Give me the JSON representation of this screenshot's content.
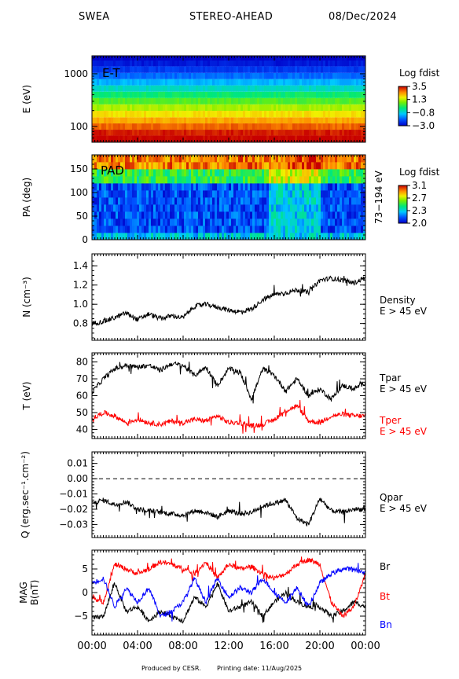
{
  "header": {
    "instrument": "SWEA",
    "spacecraft": "STEREO-AHEAD",
    "date": "08/Dec/2024"
  },
  "footer": {
    "producer": "Produced by CESR.",
    "print_date": "Printing date: 11/Aug/2025"
  },
  "colors": {
    "black": "#000000",
    "red": "#ff0000",
    "blue": "#0000ff"
  },
  "time_axis": {
    "tick_labels": [
      "00:00",
      "04:00",
      "08:00",
      "12:00",
      "16:00",
      "20:00",
      "00:00"
    ],
    "range_hours": [
      0,
      24
    ]
  },
  "chart_data": [
    {
      "id": "energy",
      "type": "heatmap",
      "panel_label": "E-T",
      "ylabel": "E (eV)",
      "yscale": "log",
      "ylim": [
        50,
        2200
      ],
      "yticks": [
        {
          "v": 100,
          "label": "100"
        },
        {
          "v": 1000,
          "label": "1000"
        }
      ],
      "colorbar": {
        "title": "Log fdist",
        "ticks": [
          "3.5",
          "1.3",
          "−0.8",
          "−3.0"
        ],
        "range": [
          -3.0,
          3.5
        ]
      },
      "energies_eV": [
        60,
        75,
        100,
        130,
        170,
        230,
        300,
        400,
        520,
        700,
        900,
        1200,
        1600,
        2000
      ],
      "log_fdist": [
        3.5,
        3.3,
        2.8,
        2.3,
        1.8,
        1.2,
        0.6,
        0.0,
        -0.6,
        -1.2,
        -1.8,
        -2.3,
        -2.7,
        -3.0
      ]
    },
    {
      "id": "pad",
      "type": "heatmap",
      "panel_label": "PAD",
      "ylabel": "PA (deg)",
      "ylim": [
        0,
        180
      ],
      "yticks": [
        {
          "v": 0,
          "label": "0"
        },
        {
          "v": 50,
          "label": "50"
        },
        {
          "v": 100,
          "label": "100"
        },
        {
          "v": 150,
          "label": "150"
        }
      ],
      "right_label": "73−194 eV",
      "colorbar": {
        "title": "Log fdist",
        "ticks": [
          "3.1",
          "2.7",
          "2.3",
          "2.0"
        ],
        "range": [
          2.0,
          3.1
        ]
      }
    },
    {
      "id": "density",
      "type": "line",
      "ylabel": "N (cm⁻³)",
      "ylim": [
        0.65,
        1.5
      ],
      "yticks": [
        {
          "v": 0.8,
          "label": "0.8"
        },
        {
          "v": 1.0,
          "label": "1.0"
        },
        {
          "v": 1.2,
          "label": "1.2"
        },
        {
          "v": 1.4,
          "label": "1.4"
        }
      ],
      "series": [
        {
          "name": "Density",
          "subtitle": "E > 45 eV",
          "color": "#000000",
          "x": [
            0,
            1,
            2,
            3,
            4,
            5,
            6,
            7,
            8,
            9,
            10,
            11,
            12,
            13,
            14,
            15,
            16,
            17,
            18,
            19,
            20,
            21,
            22,
            23,
            24
          ],
          "y": [
            0.8,
            0.82,
            0.86,
            0.91,
            0.84,
            0.9,
            0.85,
            0.88,
            0.86,
            0.98,
            1.0,
            0.97,
            0.94,
            0.92,
            0.95,
            1.05,
            1.1,
            1.12,
            1.15,
            1.12,
            1.25,
            1.27,
            1.25,
            1.22,
            1.28
          ]
        }
      ]
    },
    {
      "id": "temperature",
      "type": "line",
      "ylabel": "T (eV)",
      "ylim": [
        36,
        84
      ],
      "yticks": [
        {
          "v": 40,
          "label": "40"
        },
        {
          "v": 50,
          "label": "50"
        },
        {
          "v": 60,
          "label": "60"
        },
        {
          "v": 70,
          "label": "70"
        },
        {
          "v": 80,
          "label": "80"
        }
      ],
      "series": [
        {
          "name": "Tpar",
          "subtitle": "E > 45 eV",
          "color": "#000000",
          "x": [
            0,
            1,
            2,
            3,
            4,
            5,
            6,
            7,
            8,
            9,
            10,
            11,
            12,
            13,
            14,
            15,
            16,
            17,
            18,
            19,
            20,
            21,
            22,
            23,
            24
          ],
          "y": [
            62,
            70,
            76,
            78,
            77,
            78,
            75,
            79,
            78,
            72,
            77,
            66,
            76,
            74,
            58,
            76,
            72,
            63,
            70,
            60,
            64,
            58,
            66,
            64,
            68
          ]
        },
        {
          "name": "Tper",
          "subtitle": "E > 45 eV",
          "color": "#ff0000",
          "x": [
            0,
            1,
            2,
            3,
            4,
            5,
            6,
            7,
            8,
            9,
            10,
            11,
            12,
            13,
            14,
            15,
            16,
            17,
            18,
            19,
            20,
            21,
            22,
            23,
            24
          ],
          "y": [
            46,
            50,
            48,
            44,
            46,
            44,
            43,
            45,
            44,
            46,
            45,
            48,
            44,
            44,
            42,
            43,
            46,
            51,
            54,
            45,
            44,
            48,
            49,
            48,
            48
          ]
        }
      ]
    },
    {
      "id": "heatflux",
      "type": "line",
      "ylabel": "Q (erg.sec⁻¹.cm⁻²)",
      "ylim": [
        -0.037,
        0.016
      ],
      "yticks": [
        {
          "v": 0.01,
          "label": "0.01"
        },
        {
          "v": 0.0,
          "label": "0.00"
        },
        {
          "v": -0.01,
          "label": "−0.01"
        },
        {
          "v": -0.02,
          "label": "−0.02"
        },
        {
          "v": -0.03,
          "label": "−0.03"
        }
      ],
      "reference_line": 0.0,
      "series": [
        {
          "name": "Qpar",
          "subtitle": "E > 45 eV",
          "color": "#000000",
          "x": [
            0,
            1,
            2,
            3,
            4,
            5,
            6,
            7,
            8,
            9,
            10,
            11,
            12,
            13,
            14,
            15,
            16,
            17,
            18,
            19,
            20,
            21,
            22,
            23,
            24
          ],
          "y": [
            -0.016,
            -0.014,
            -0.017,
            -0.015,
            -0.02,
            -0.021,
            -0.022,
            -0.023,
            -0.024,
            -0.021,
            -0.022,
            -0.025,
            -0.021,
            -0.023,
            -0.022,
            -0.018,
            -0.016,
            -0.014,
            -0.026,
            -0.03,
            -0.013,
            -0.021,
            -0.022,
            -0.02,
            -0.02
          ]
        }
      ]
    },
    {
      "id": "mag",
      "type": "line",
      "ylabel": "MAG B(nT)",
      "ylim": [
        -8.5,
        8.5
      ],
      "yticks": [
        {
          "v": 5,
          "label": "5"
        },
        {
          "v": 0,
          "label": "0"
        },
        {
          "v": -5,
          "label": "−5"
        }
      ],
      "series": [
        {
          "name": "Br",
          "color": "#000000",
          "x": [
            0,
            1,
            2,
            3,
            4,
            5,
            6,
            7,
            8,
            9,
            10,
            11,
            12,
            13,
            14,
            15,
            16,
            17,
            18,
            19,
            20,
            21,
            22,
            23,
            24
          ],
          "y": [
            -5.5,
            -5.0,
            2.0,
            -4.0,
            -3.0,
            -6.0,
            -4.0,
            -5.0,
            -6.0,
            -1.0,
            -3.0,
            2.0,
            -4.0,
            -3.0,
            -2.0,
            -5.0,
            -2.0,
            0.0,
            -2.0,
            -3.0,
            -3.0,
            -5.0,
            -4.0,
            -2.0,
            -3.0
          ]
        },
        {
          "name": "Bt",
          "color": "#ff0000",
          "x": [
            0,
            1,
            2,
            3,
            4,
            5,
            6,
            7,
            8,
            9,
            10,
            11,
            12,
            13,
            14,
            15,
            16,
            17,
            18,
            19,
            20,
            21,
            22,
            23,
            24
          ],
          "y": [
            -1.0,
            -2.0,
            6.0,
            5.0,
            4.0,
            5.0,
            6.5,
            6.0,
            5.0,
            4.0,
            6.5,
            3.0,
            6.0,
            5.0,
            5.5,
            4.0,
            3.0,
            4.0,
            6.0,
            7.0,
            6.0,
            -2.0,
            -5.0,
            -3.0,
            4.0
          ]
        },
        {
          "name": "Bn",
          "color": "#0000ff",
          "x": [
            0,
            1,
            2,
            3,
            4,
            5,
            6,
            7,
            8,
            9,
            10,
            11,
            12,
            13,
            14,
            15,
            16,
            17,
            18,
            19,
            20,
            21,
            22,
            23,
            24
          ],
          "y": [
            2.0,
            3.0,
            -3.0,
            1.0,
            -2.0,
            1.0,
            -5.0,
            -4.0,
            -2.0,
            3.0,
            -2.0,
            3.0,
            -1.0,
            1.0,
            0.0,
            3.0,
            0.0,
            -2.0,
            1.0,
            -3.0,
            2.0,
            4.0,
            5.0,
            5.0,
            4.0
          ]
        }
      ]
    }
  ]
}
